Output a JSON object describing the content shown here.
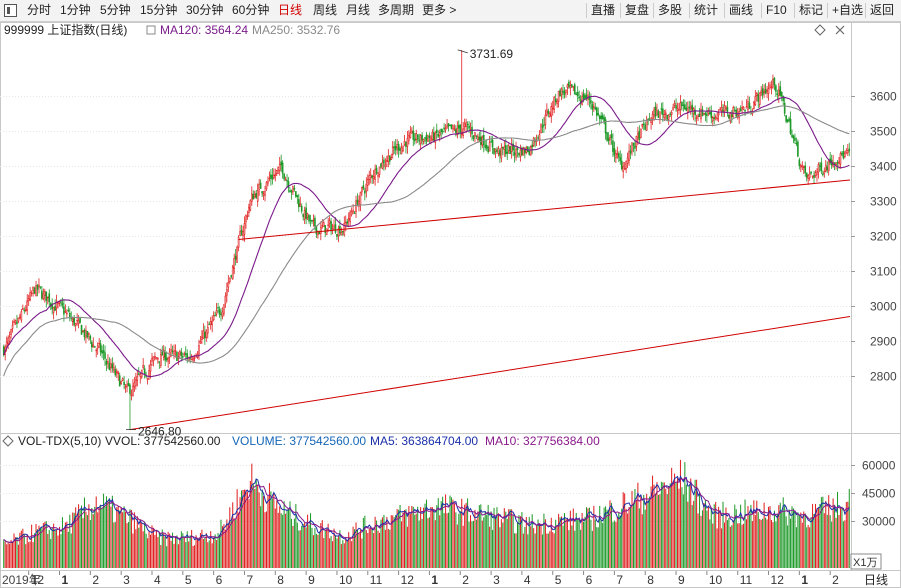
{
  "toolbar": {
    "periods": [
      "分时",
      "1分钟",
      "5分钟",
      "15分钟",
      "30分钟",
      "60分钟",
      "日线",
      "周线",
      "月线",
      "多周期",
      "更多 >"
    ],
    "active_period": "日线",
    "actions": [
      "直播",
      "复盘",
      "多股",
      "统计",
      "画线",
      "F10",
      "标记",
      "+自选",
      "返回"
    ]
  },
  "header": {
    "symbol": "999999 上证指数(日线)",
    "ma120_label": "MA120: 3564.24",
    "ma250_label": "MA250: 3532.76",
    "diamond_icon": "diamond-icon",
    "close_icon": "close-icon"
  },
  "volume_header": {
    "indicator": "VOL-TDX(5,10)",
    "vvol": "VVOL: 377542560.00",
    "volume": "VOLUME: 377542560.00",
    "ma5": "MA5: 363864704.00",
    "ma10": "MA10: 327756384.00"
  },
  "colors": {
    "up": "#e02020",
    "down": "#1f9a2a",
    "ma120": "#7a1a8a",
    "ma250": "#8a8a8a",
    "trendline": "#d00000",
    "vol_ma5": "#1a2fa8",
    "vol_ma10": "#8a1a8a",
    "volume_label": "#1566b7"
  },
  "chart_data": [
    {
      "type": "candlestick",
      "title": "999999 上证指数(日线)",
      "y_ticks": [
        2800,
        2900,
        3000,
        3100,
        3200,
        3300,
        3400,
        3500,
        3600
      ],
      "ylim": [
        2640,
        3760
      ],
      "annotations": [
        {
          "text": "3731.69",
          "value": 3731.69,
          "month": "2021-02"
        },
        {
          "text": "2646.80",
          "value": 2646.8,
          "month": "2020-03"
        }
      ],
      "series": [
        {
          "name": "MA120",
          "value_last": 3564.24
        },
        {
          "name": "MA250",
          "value_last": 3532.76
        }
      ],
      "approx_monthly_close": [
        {
          "month": "2019-11",
          "close": 2875
        },
        {
          "month": "2019-12",
          "close": 3050
        },
        {
          "month": "2020-01",
          "close": 2977
        },
        {
          "month": "2020-02",
          "close": 2880
        },
        {
          "month": "2020-03",
          "close": 2750
        },
        {
          "month": "2020-04",
          "close": 2860
        },
        {
          "month": "2020-05",
          "close": 2852
        },
        {
          "month": "2020-06",
          "close": 2985
        },
        {
          "month": "2020-07",
          "close": 3310
        },
        {
          "month": "2020-08",
          "close": 3395
        },
        {
          "month": "2020-09",
          "close": 3218
        },
        {
          "month": "2020-10",
          "close": 3225
        },
        {
          "month": "2020-11",
          "close": 3390
        },
        {
          "month": "2020-12",
          "close": 3473
        },
        {
          "month": "2021-01",
          "close": 3483
        },
        {
          "month": "2021-02",
          "close": 3509
        },
        {
          "month": "2021-03",
          "close": 3441
        },
        {
          "month": "2021-04",
          "close": 3447
        },
        {
          "month": "2021-05",
          "close": 3615
        },
        {
          "month": "2021-06",
          "close": 3591
        },
        {
          "month": "2021-07",
          "close": 3397
        },
        {
          "month": "2021-08",
          "close": 3544
        },
        {
          "month": "2021-09",
          "close": 3568
        },
        {
          "month": "2021-10",
          "close": 3547
        },
        {
          "month": "2021-11",
          "close": 3563
        },
        {
          "month": "2021-12",
          "close": 3640
        },
        {
          "month": "2022-01",
          "close": 3361
        },
        {
          "month": "2022-02",
          "close": 3430
        }
      ],
      "trendlines": [
        {
          "from": {
            "month": "2020-03",
            "value": 2646.8
          },
          "to": {
            "month": "2022-02",
            "value": 2970
          }
        },
        {
          "from": {
            "month": "2020-07",
            "value": 3190
          },
          "to": {
            "month": "2022-02",
            "value": 3360
          }
        }
      ]
    },
    {
      "type": "bar",
      "title": "VOL-TDX(5,10)",
      "y_ticks": [
        30000,
        45000,
        60000
      ],
      "unit": "X1万",
      "ylim": [
        5000,
        68000
      ],
      "approx_monthly_volume": [
        {
          "month": "2019-11",
          "volume": 17000
        },
        {
          "month": "2019-12",
          "volume": 24000
        },
        {
          "month": "2020-01",
          "volume": 27000
        },
        {
          "month": "2020-02",
          "volume": 40000
        },
        {
          "month": "2020-03",
          "volume": 32000
        },
        {
          "month": "2020-04",
          "volume": 21000
        },
        {
          "month": "2020-05",
          "volume": 21000
        },
        {
          "month": "2020-06",
          "volume": 24000
        },
        {
          "month": "2020-07",
          "volume": 52000
        },
        {
          "month": "2020-08",
          "volume": 36000
        },
        {
          "month": "2020-09",
          "volume": 28000
        },
        {
          "month": "2020-10",
          "volume": 22000
        },
        {
          "month": "2020-11",
          "volume": 29000
        },
        {
          "month": "2020-12",
          "volume": 33000
        },
        {
          "month": "2021-01",
          "volume": 38000
        },
        {
          "month": "2021-02",
          "volume": 35000
        },
        {
          "month": "2021-03",
          "volume": 32000
        },
        {
          "month": "2021-04",
          "volume": 28000
        },
        {
          "month": "2021-05",
          "volume": 30000
        },
        {
          "month": "2021-06",
          "volume": 31000
        },
        {
          "month": "2021-07",
          "volume": 38000
        },
        {
          "month": "2021-08",
          "volume": 45000
        },
        {
          "month": "2021-09",
          "volume": 53000
        },
        {
          "month": "2021-10",
          "volume": 33000
        },
        {
          "month": "2021-11",
          "volume": 34000
        },
        {
          "month": "2021-12",
          "volume": 36000
        },
        {
          "month": "2022-01",
          "volume": 33000
        },
        {
          "month": "2022-02",
          "volume": 37754
        }
      ]
    }
  ],
  "x_axis": {
    "year_label": "2019年",
    "month_labels": [
      "12",
      "1",
      "2",
      "3",
      "4",
      "5",
      "6",
      "7",
      "8",
      "9",
      "10",
      "11",
      "12",
      "1",
      "2",
      "3",
      "4",
      "5",
      "6",
      "7",
      "8",
      "9",
      "10",
      "11",
      "12",
      "1",
      "2"
    ],
    "bold_labels": [
      "1",
      "1"
    ],
    "period_label": "日线"
  }
}
